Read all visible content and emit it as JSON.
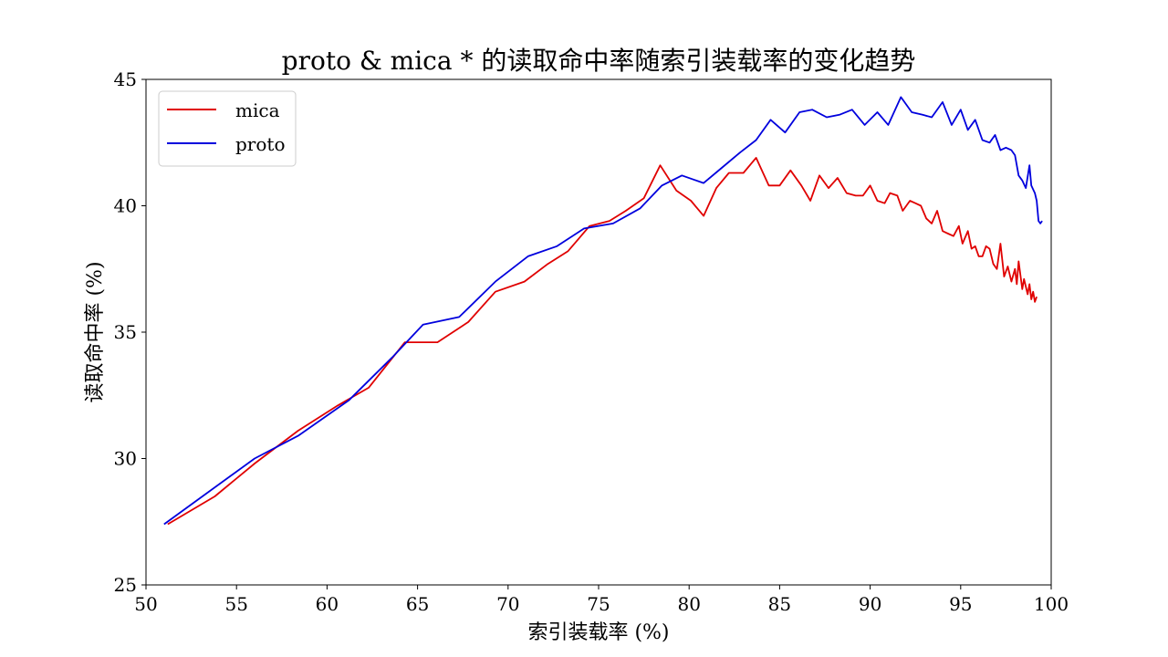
{
  "chart_data": {
    "type": "line",
    "title": "proto & mica * 的读取命中率随索引装载率的变化趋势",
    "xlabel": "索引装载率 (%)",
    "ylabel": "读取命中率 (%)",
    "xlim": [
      50,
      100
    ],
    "ylim": [
      25,
      45
    ],
    "xticks": [
      50,
      55,
      60,
      65,
      70,
      75,
      80,
      85,
      90,
      95,
      100
    ],
    "yticks": [
      25,
      30,
      35,
      40,
      45
    ],
    "grid": false,
    "legend_position": "top-left",
    "series": [
      {
        "name": "mica",
        "color": "#e00000",
        "points": [
          [
            51.2,
            27.4
          ],
          [
            53.8,
            28.5
          ],
          [
            56.0,
            29.8
          ],
          [
            58.4,
            31.1
          ],
          [
            60.6,
            32.1
          ],
          [
            62.3,
            32.8
          ],
          [
            64.3,
            34.6
          ],
          [
            66.1,
            34.6
          ],
          [
            67.8,
            35.4
          ],
          [
            69.3,
            36.6
          ],
          [
            70.9,
            37.0
          ],
          [
            72.2,
            37.7
          ],
          [
            73.3,
            38.2
          ],
          [
            74.5,
            39.2
          ],
          [
            75.6,
            39.4
          ],
          [
            76.5,
            39.8
          ],
          [
            77.5,
            40.3
          ],
          [
            78.4,
            41.6
          ],
          [
            79.3,
            40.6
          ],
          [
            80.1,
            40.2
          ],
          [
            80.8,
            39.6
          ],
          [
            81.5,
            40.7
          ],
          [
            82.2,
            41.3
          ],
          [
            83.0,
            41.3
          ],
          [
            83.7,
            41.9
          ],
          [
            84.4,
            40.8
          ],
          [
            85.0,
            40.8
          ],
          [
            85.6,
            41.4
          ],
          [
            86.2,
            40.8
          ],
          [
            86.7,
            40.2
          ],
          [
            87.2,
            41.2
          ],
          [
            87.7,
            40.7
          ],
          [
            88.2,
            41.1
          ],
          [
            88.7,
            40.5
          ],
          [
            89.2,
            40.4
          ],
          [
            89.6,
            40.4
          ],
          [
            90.0,
            40.8
          ],
          [
            90.4,
            40.2
          ],
          [
            90.8,
            40.1
          ],
          [
            91.1,
            40.5
          ],
          [
            91.5,
            40.4
          ],
          [
            91.8,
            39.8
          ],
          [
            92.2,
            40.2
          ],
          [
            92.5,
            40.1
          ],
          [
            92.8,
            40.0
          ],
          [
            93.1,
            39.5
          ],
          [
            93.4,
            39.3
          ],
          [
            93.7,
            39.8
          ],
          [
            94.0,
            39.0
          ],
          [
            94.3,
            38.9
          ],
          [
            94.6,
            38.8
          ],
          [
            94.9,
            39.2
          ],
          [
            95.1,
            38.5
          ],
          [
            95.4,
            39.0
          ],
          [
            95.6,
            38.3
          ],
          [
            95.8,
            38.4
          ],
          [
            96.0,
            38.0
          ],
          [
            96.2,
            38.0
          ],
          [
            96.4,
            38.4
          ],
          [
            96.6,
            38.3
          ],
          [
            96.8,
            37.7
          ],
          [
            97.0,
            37.5
          ],
          [
            97.2,
            38.5
          ],
          [
            97.4,
            37.2
          ],
          [
            97.6,
            37.6
          ],
          [
            97.8,
            37.0
          ],
          [
            98.0,
            37.5
          ],
          [
            98.1,
            36.9
          ],
          [
            98.2,
            37.8
          ],
          [
            98.4,
            36.7
          ],
          [
            98.5,
            37.1
          ],
          [
            98.7,
            36.5
          ],
          [
            98.8,
            36.9
          ],
          [
            98.9,
            36.3
          ],
          [
            99.0,
            36.6
          ],
          [
            99.1,
            36.2
          ],
          [
            99.2,
            36.4
          ]
        ]
      },
      {
        "name": "proto",
        "color": "#0000dd",
        "points": [
          [
            51.0,
            27.4
          ],
          [
            56.0,
            30.0
          ],
          [
            58.4,
            30.9
          ],
          [
            61.2,
            32.3
          ],
          [
            63.6,
            34.0
          ],
          [
            65.3,
            35.3
          ],
          [
            67.3,
            35.6
          ],
          [
            69.3,
            37.0
          ],
          [
            71.1,
            38.0
          ],
          [
            72.7,
            38.4
          ],
          [
            74.2,
            39.1
          ],
          [
            75.8,
            39.3
          ],
          [
            77.3,
            39.9
          ],
          [
            78.5,
            40.8
          ],
          [
            79.6,
            41.2
          ],
          [
            80.8,
            40.9
          ],
          [
            81.8,
            41.5
          ],
          [
            82.8,
            42.1
          ],
          [
            83.7,
            42.6
          ],
          [
            84.5,
            43.4
          ],
          [
            85.3,
            42.9
          ],
          [
            86.1,
            43.7
          ],
          [
            86.8,
            43.8
          ],
          [
            87.6,
            43.5
          ],
          [
            88.3,
            43.6
          ],
          [
            89.0,
            43.8
          ],
          [
            89.7,
            43.2
          ],
          [
            90.4,
            43.7
          ],
          [
            91.0,
            43.2
          ],
          [
            91.7,
            44.3
          ],
          [
            92.3,
            43.7
          ],
          [
            92.9,
            43.6
          ],
          [
            93.4,
            43.5
          ],
          [
            94.0,
            44.1
          ],
          [
            94.5,
            43.2
          ],
          [
            95.0,
            43.8
          ],
          [
            95.4,
            43.0
          ],
          [
            95.8,
            43.4
          ],
          [
            96.2,
            42.6
          ],
          [
            96.6,
            42.5
          ],
          [
            96.9,
            42.8
          ],
          [
            97.2,
            42.2
          ],
          [
            97.5,
            42.3
          ],
          [
            97.8,
            42.2
          ],
          [
            98.0,
            42.0
          ],
          [
            98.2,
            41.2
          ],
          [
            98.4,
            41.0
          ],
          [
            98.6,
            40.7
          ],
          [
            98.8,
            41.6
          ],
          [
            98.9,
            40.8
          ],
          [
            99.1,
            40.5
          ],
          [
            99.2,
            40.2
          ],
          [
            99.3,
            39.4
          ],
          [
            99.4,
            39.3
          ],
          [
            99.5,
            39.4
          ]
        ]
      }
    ]
  }
}
